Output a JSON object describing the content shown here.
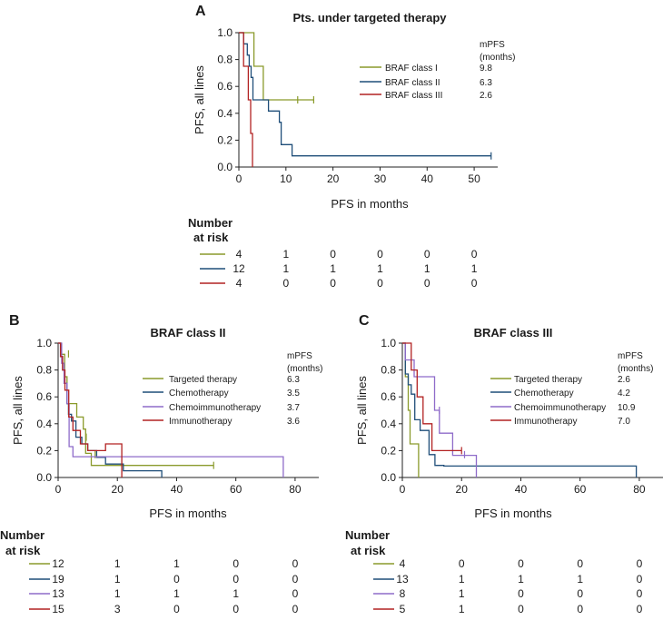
{
  "chart_data": [
    {
      "panel_letter": "A",
      "title": "Pts. under targeted therapy",
      "type": "line",
      "xlabel": "PFS in months",
      "ylabel": "PFS, all lines",
      "xlim": [
        0,
        55
      ],
      "ylim": [
        0,
        1.0
      ],
      "xticks": [
        0,
        10,
        20,
        30,
        40,
        50
      ],
      "yticks": [
        0.0,
        0.2,
        0.4,
        0.6,
        0.8,
        1.0
      ],
      "legend_header": [
        "mPFS",
        "(months)"
      ],
      "legend_position": "top-right",
      "risk_header": [
        "Number",
        "at risk"
      ],
      "risk_columns": [
        0,
        10,
        20,
        30,
        40,
        50
      ],
      "series": [
        {
          "name": "BRAF class I",
          "mpfs": "9.8",
          "color": "#8a9a2b",
          "x": [
            0,
            3.2,
            3.2,
            5.2,
            5.2,
            7.6,
            7.6,
            15.9
          ],
          "y": [
            1.0,
            1.0,
            0.75,
            0.75,
            0.5,
            0.5,
            0.5,
            0.5
          ],
          "censor": [
            [
              12.5,
              0.5
            ],
            [
              15.9,
              0.5
            ]
          ],
          "risk": [
            "4",
            "1",
            "0",
            "0",
            "0",
            "0"
          ]
        },
        {
          "name": "BRAF class II",
          "mpfs": "6.3",
          "color": "#1f4e79",
          "x": [
            0,
            1.0,
            1.0,
            1.8,
            1.8,
            2.2,
            2.2,
            2.6,
            2.6,
            3.0,
            3.0,
            6.3,
            6.3,
            8.6,
            8.6,
            9.0,
            9.0,
            11.3,
            11.3,
            53.6
          ],
          "y": [
            1.0,
            1.0,
            0.917,
            0.917,
            0.833,
            0.833,
            0.75,
            0.75,
            0.667,
            0.667,
            0.5,
            0.5,
            0.417,
            0.417,
            0.333,
            0.333,
            0.167,
            0.167,
            0.083,
            0.083
          ],
          "censor": [
            [
              53.6,
              0.083
            ]
          ],
          "risk": [
            "12",
            "1",
            "1",
            "1",
            "1",
            "1"
          ]
        },
        {
          "name": "BRAF class III",
          "mpfs": "2.6",
          "color": "#b22222",
          "x": [
            0,
            1.0,
            1.0,
            2.0,
            2.0,
            2.5,
            2.5,
            2.9,
            2.9
          ],
          "y": [
            1.0,
            1.0,
            0.75,
            0.75,
            0.5,
            0.5,
            0.25,
            0.25,
            0.0
          ],
          "censor": [],
          "risk": [
            "4",
            "0",
            "0",
            "0",
            "0",
            "0"
          ]
        }
      ]
    },
    {
      "panel_letter": "B",
      "title": "BRAF class II",
      "type": "line",
      "xlabel": "PFS in months",
      "ylabel": "PFS, all lines",
      "xlim": [
        0,
        88
      ],
      "ylim": [
        0,
        1.0
      ],
      "xticks": [
        0,
        20,
        40,
        60,
        80
      ],
      "yticks": [
        0.0,
        0.2,
        0.4,
        0.6,
        0.8,
        1.0
      ],
      "legend_header": [
        "mPFS",
        "(months)"
      ],
      "legend_position": "top-right",
      "risk_header": [
        "Number",
        "at risk"
      ],
      "risk_columns": [
        0,
        20,
        40,
        60,
        80
      ],
      "series": [
        {
          "name": "Targeted therapy",
          "mpfs": "6.3",
          "color": "#8a9a2b",
          "x": [
            0,
            1.0,
            1.0,
            2.2,
            2.2,
            3.0,
            3.0,
            6.3,
            6.3,
            8.5,
            8.5,
            9.3,
            9.3,
            11.2,
            11.2,
            52.5
          ],
          "y": [
            1.0,
            1.0,
            0.917,
            0.917,
            0.75,
            0.75,
            0.55,
            0.55,
            0.45,
            0.45,
            0.36,
            0.36,
            0.18,
            0.18,
            0.09,
            0.09
          ],
          "censor": [
            [
              3.5,
              0.92
            ],
            [
              9.5,
              0.3
            ],
            [
              12.5,
              0.17
            ],
            [
              52.5,
              0.09
            ]
          ],
          "risk": [
            "12",
            "1",
            "1",
            "0",
            "0"
          ]
        },
        {
          "name": "Chemotherapy",
          "mpfs": "3.5",
          "color": "#1f4e79",
          "x": [
            0,
            0.8,
            0.8,
            1.5,
            1.5,
            2.2,
            2.2,
            3.0,
            3.0,
            3.5,
            3.5,
            4.5,
            4.5,
            6.0,
            6.0,
            8.0,
            8.0,
            10.0,
            10.0,
            13.0,
            13.0,
            16.0,
            16.0,
            22.0,
            22.0,
            35.0,
            35.0
          ],
          "y": [
            1.0,
            1.0,
            0.9,
            0.9,
            0.8,
            0.8,
            0.7,
            0.7,
            0.55,
            0.55,
            0.47,
            0.47,
            0.42,
            0.42,
            0.3,
            0.3,
            0.25,
            0.25,
            0.2,
            0.2,
            0.15,
            0.15,
            0.1,
            0.1,
            0.05,
            0.05,
            0.0
          ],
          "censor": [],
          "risk": [
            "19",
            "1",
            "0",
            "0",
            "0"
          ]
        },
        {
          "name": "Chemoimmunotherapy",
          "mpfs": "3.7",
          "color": "#8e6bc9",
          "x": [
            0,
            1.2,
            1.2,
            2.0,
            2.0,
            3.0,
            3.0,
            3.7,
            3.7,
            5.0,
            5.0,
            21.0,
            21.0,
            76.0,
            76.0
          ],
          "y": [
            1.0,
            1.0,
            0.85,
            0.85,
            0.7,
            0.7,
            0.55,
            0.55,
            0.23,
            0.23,
            0.155,
            0.155,
            0.155,
            0.155,
            0.0
          ],
          "censor": [],
          "risk": [
            "13",
            "1",
            "1",
            "1",
            "0"
          ]
        },
        {
          "name": "Immunotherapy",
          "mpfs": "3.6",
          "color": "#b22222",
          "x": [
            0,
            0.8,
            0.8,
            1.5,
            1.5,
            2.3,
            2.3,
            3.6,
            3.6,
            5.0,
            5.0,
            7.5,
            7.5,
            10.0,
            10.0,
            16.0,
            16.0,
            21.5,
            21.5
          ],
          "y": [
            1.0,
            1.0,
            0.9,
            0.9,
            0.8,
            0.8,
            0.65,
            0.65,
            0.45,
            0.45,
            0.35,
            0.35,
            0.25,
            0.25,
            0.2,
            0.2,
            0.25,
            0.25,
            0.0
          ],
          "censor": [],
          "risk": [
            "15",
            "3",
            "0",
            "0",
            "0"
          ]
        }
      ]
    },
    {
      "panel_letter": "C",
      "title": "BRAF class III",
      "type": "line",
      "xlabel": "PFS in months",
      "ylabel": "PFS, all lines",
      "xlim": [
        0,
        88
      ],
      "ylim": [
        0,
        1.0
      ],
      "xticks": [
        0,
        20,
        40,
        60,
        80
      ],
      "yticks": [
        0.0,
        0.2,
        0.4,
        0.6,
        0.8,
        1.0
      ],
      "legend_header": [
        "mPFS",
        "(months)"
      ],
      "legend_position": "top-right",
      "risk_header": [
        "Number",
        "at risk"
      ],
      "risk_columns": [
        0,
        20,
        40,
        60,
        80
      ],
      "series": [
        {
          "name": "Targeted therapy",
          "mpfs": "2.6",
          "color": "#8a9a2b",
          "x": [
            0,
            1.0,
            1.0,
            2.0,
            2.0,
            2.6,
            2.6,
            3.2,
            3.2,
            4.0,
            4.0,
            5.5,
            5.5
          ],
          "y": [
            1.0,
            1.0,
            0.75,
            0.75,
            0.5,
            0.5,
            0.25,
            0.25,
            0.25,
            0.25,
            0.25,
            0.25,
            0.0
          ],
          "censor": [],
          "risk": [
            "4",
            "0",
            "0",
            "0",
            "0"
          ]
        },
        {
          "name": "Chemotherapy",
          "mpfs": "4.2",
          "color": "#1f4e79",
          "x": [
            0,
            1.0,
            1.0,
            2.0,
            2.0,
            3.0,
            3.0,
            4.2,
            4.2,
            6.0,
            6.0,
            9.0,
            9.0,
            11.0,
            11.0,
            14.0,
            14.0,
            79.0,
            79.0
          ],
          "y": [
            1.0,
            1.0,
            0.77,
            0.77,
            0.69,
            0.69,
            0.62,
            0.62,
            0.43,
            0.43,
            0.35,
            0.35,
            0.17,
            0.17,
            0.09,
            0.09,
            0.085,
            0.085,
            0.0
          ],
          "censor": [],
          "risk": [
            "13",
            "1",
            "1",
            "1",
            "0"
          ]
        },
        {
          "name": "Chemoimmunotherapy",
          "mpfs": "10.9",
          "color": "#8e6bc9",
          "x": [
            0,
            1.0,
            1.0,
            4.0,
            4.0,
            10.9,
            10.9,
            12.5,
            12.5,
            17.0,
            17.0,
            25.0,
            25.0
          ],
          "y": [
            1.0,
            1.0,
            0.875,
            0.875,
            0.75,
            0.75,
            0.5,
            0.5,
            0.33,
            0.33,
            0.165,
            0.165,
            0.0
          ],
          "censor": [
            [
              12.5,
              0.5
            ],
            [
              21.0,
              0.17
            ]
          ],
          "risk": [
            "8",
            "1",
            "0",
            "0",
            "0"
          ]
        },
        {
          "name": "Immunotherapy",
          "mpfs": "7.0",
          "color": "#b22222",
          "x": [
            0,
            3.0,
            3.0,
            5.0,
            5.0,
            7.0,
            7.0,
            10.0,
            10.0,
            20.0
          ],
          "y": [
            1.0,
            1.0,
            0.8,
            0.8,
            0.6,
            0.6,
            0.4,
            0.4,
            0.2,
            0.2
          ],
          "censor": [
            [
              20.0,
              0.2
            ]
          ],
          "risk": [
            "5",
            "1",
            "0",
            "0",
            "0"
          ]
        }
      ]
    }
  ]
}
